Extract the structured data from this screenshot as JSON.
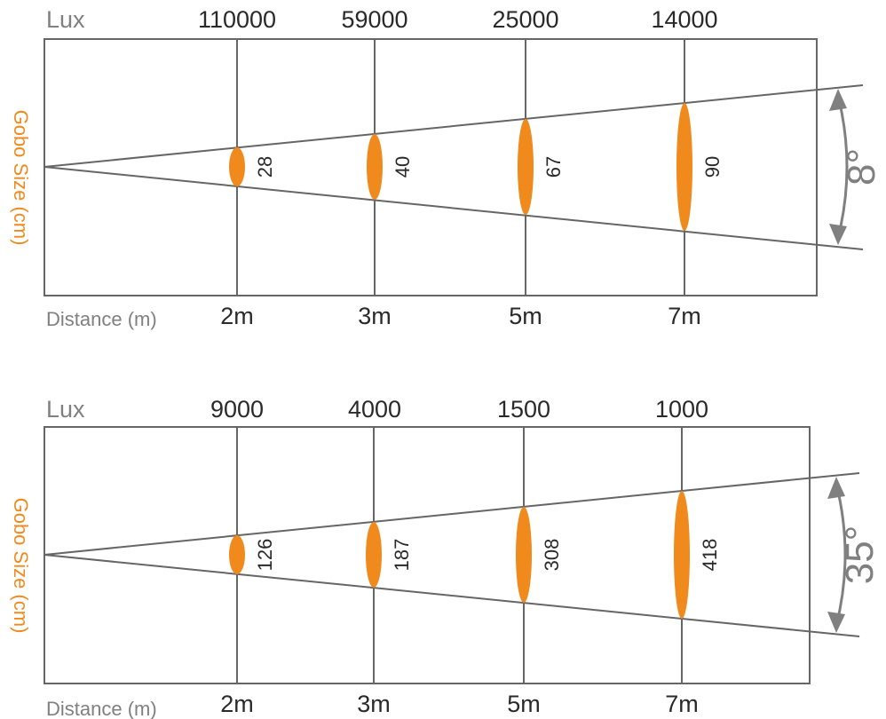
{
  "charts": [
    {
      "lux_label": "Lux",
      "y_label": "Gobo Size (cm)",
      "x_label": "Distance (m)",
      "angle": "8°",
      "points": [
        {
          "distance": "2m",
          "lux": "110000",
          "size": "28"
        },
        {
          "distance": "3m",
          "lux": "59000",
          "size": "40"
        },
        {
          "distance": "5m",
          "lux": "25000",
          "size": "67"
        },
        {
          "distance": "7m",
          "lux": "14000",
          "size": "90"
        }
      ]
    },
    {
      "lux_label": "Lux",
      "y_label": "Gobo Size (cm)",
      "x_label": "Distance (m)",
      "angle": "35°",
      "points": [
        {
          "distance": "2m",
          "lux": "9000",
          "size": "126"
        },
        {
          "distance": "3m",
          "lux": "4000",
          "size": "187"
        },
        {
          "distance": "5m",
          "lux": "1500",
          "size": "308"
        },
        {
          "distance": "7m",
          "lux": "1000",
          "size": "418"
        }
      ]
    }
  ],
  "colors": {
    "accent": "#f08a1c",
    "line": "#666666",
    "muted": "#808080",
    "text": "#2a2a2a"
  }
}
